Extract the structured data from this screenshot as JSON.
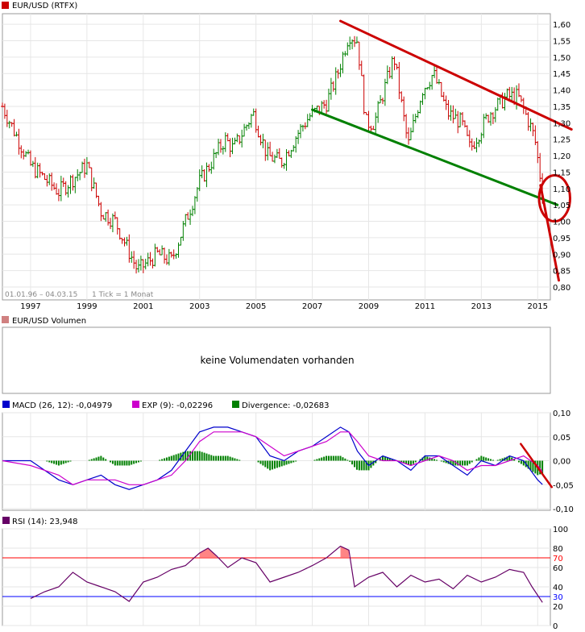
{
  "price_panel": {
    "legend": "EUR/USD (RTFX)",
    "legend_color": "#cc0000",
    "range_note": "01.01.96 – 04.03.15",
    "tick_note": "1 Tick = 1 Monat"
  },
  "volume_panel": {
    "legend": "EUR/USD Volumen",
    "legend_color": "#d08080",
    "message": "keine Volumendaten vorhanden"
  },
  "macd_panel": {
    "macd_legend": "MACD (26, 12): -0,04979",
    "exp_legend": "EXP (9): -0,02296",
    "div_legend": "Divergence: -0,02683",
    "macd_color": "#0000cc",
    "exp_color": "#cc00cc",
    "div_color": "#008000"
  },
  "rsi_panel": {
    "legend": "RSI (14): 23,948",
    "legend_color": "#660066"
  },
  "chart_data": [
    {
      "type": "ohlc-bar",
      "title": "EUR/USD (RTFX)",
      "x_tick_labels": [
        "1997",
        "1999",
        "2001",
        "2003",
        "2005",
        "2007",
        "2009",
        "2011",
        "2013",
        "2015"
      ],
      "y_tick_labels": [
        "1,60",
        "1,55",
        "1,50",
        "1,45",
        "1,40",
        "1,35",
        "1,30",
        "1,25",
        "1,20",
        "1,15",
        "1,10",
        "1,05",
        "1,00",
        "0,95",
        "0,90",
        "0,85",
        "0,80"
      ],
      "ylim": [
        0.8,
        1.62
      ],
      "up_color": "#008000",
      "down_color": "#cc0000",
      "series": [
        {
          "name": "EUR/USD",
          "x": [
            1996.0,
            1997.0,
            1998.0,
            1999.0,
            1999.5,
            2000.0,
            2000.8,
            2001.5,
            2002.0,
            2002.5,
            2003.0,
            2003.9,
            2004.2,
            2004.9,
            2005.4,
            2005.9,
            2006.5,
            2006.9,
            2007.5,
            2007.9,
            2008.3,
            2008.6,
            2008.9,
            2009.2,
            2009.9,
            2010.4,
            2010.9,
            2011.3,
            2011.8,
            2012.3,
            2012.6,
            2013.3,
            2013.9,
            2014.3,
            2014.7,
            2014.9,
            2015.17
          ],
          "y": [
            1.35,
            1.17,
            1.09,
            1.17,
            1.03,
            1.0,
            0.85,
            0.9,
            0.88,
            1.0,
            1.12,
            1.25,
            1.22,
            1.33,
            1.2,
            1.18,
            1.27,
            1.32,
            1.36,
            1.45,
            1.57,
            1.55,
            1.3,
            1.3,
            1.5,
            1.23,
            1.4,
            1.45,
            1.33,
            1.3,
            1.22,
            1.33,
            1.38,
            1.38,
            1.3,
            1.25,
            1.09
          ]
        }
      ],
      "annotations": [
        {
          "kind": "trendline",
          "name": "upper-trendline",
          "color": "#cc0000",
          "from": [
            2008.0,
            1.61
          ],
          "to": [
            2016.2,
            1.28
          ]
        },
        {
          "kind": "trendline",
          "name": "lower-trendline",
          "color": "#008000",
          "from": [
            2007.0,
            1.34
          ],
          "to": [
            2015.7,
            1.05
          ]
        },
        {
          "kind": "trendline",
          "name": "projection-line",
          "color": "#cc0000",
          "from": [
            2015.1,
            1.11
          ],
          "to": [
            2015.75,
            0.82
          ]
        },
        {
          "kind": "circle",
          "name": "highlight-circle",
          "color": "#cc0000",
          "center": [
            2015.6,
            1.07
          ],
          "rx_years": 0.55,
          "ry_value": 0.07
        }
      ]
    },
    {
      "type": "line",
      "title": "MACD (26, 12)",
      "ylim": [
        -0.1,
        0.1
      ],
      "y_tick_labels": [
        "0,10",
        "0,05",
        "0,00",
        "-0,05",
        "-0,10"
      ],
      "x": [
        1996.0,
        1997.0,
        1997.5,
        1998.0,
        1998.5,
        1999.0,
        1999.5,
        2000.0,
        2000.5,
        2001.0,
        2001.5,
        2002.0,
        2002.5,
        2003.0,
        2003.5,
        2004.0,
        2004.5,
        2005.0,
        2005.5,
        2006.0,
        2006.5,
        2007.0,
        2007.5,
        2008.0,
        2008.3,
        2008.6,
        2009.0,
        2009.5,
        2010.0,
        2010.5,
        2011.0,
        2011.5,
        2012.0,
        2012.5,
        2013.0,
        2013.5,
        2014.0,
        2014.5,
        2015.0,
        2015.17
      ],
      "series": [
        {
          "name": "MACD",
          "values": [
            0.0,
            0.0,
            -0.02,
            -0.04,
            -0.05,
            -0.04,
            -0.03,
            -0.05,
            -0.06,
            -0.05,
            -0.04,
            -0.02,
            0.02,
            0.06,
            0.07,
            0.07,
            0.06,
            0.05,
            0.01,
            0.0,
            0.02,
            0.03,
            0.05,
            0.07,
            0.06,
            0.02,
            -0.01,
            0.01,
            0.0,
            -0.02,
            0.01,
            0.01,
            -0.01,
            -0.03,
            0.0,
            -0.01,
            0.01,
            0.0,
            -0.04,
            -0.04979
          ]
        },
        {
          "name": "EXP",
          "values": [
            0.0,
            -0.01,
            -0.02,
            -0.03,
            -0.05,
            -0.04,
            -0.04,
            -0.04,
            -0.05,
            -0.05,
            -0.04,
            -0.03,
            0.0,
            0.04,
            0.06,
            0.06,
            0.06,
            0.05,
            0.03,
            0.01,
            0.02,
            0.03,
            0.04,
            0.06,
            0.06,
            0.04,
            0.01,
            0.0,
            0.0,
            -0.01,
            0.0,
            0.01,
            0.0,
            -0.02,
            -0.01,
            -0.01,
            0.0,
            0.01,
            -0.01,
            -0.02296
          ]
        },
        {
          "name": "Divergence",
          "values": [
            0.0,
            0.0,
            0.0,
            -0.01,
            0.0,
            0.0,
            0.01,
            -0.01,
            -0.01,
            0.0,
            0.0,
            0.01,
            0.02,
            0.02,
            0.01,
            0.01,
            0.0,
            0.0,
            -0.02,
            -0.01,
            0.0,
            0.0,
            0.01,
            0.01,
            0.0,
            -0.02,
            -0.02,
            0.01,
            0.0,
            -0.01,
            0.01,
            0.0,
            -0.01,
            -0.01,
            0.01,
            0.0,
            0.01,
            -0.01,
            -0.03,
            -0.02683
          ]
        }
      ],
      "annotations": [
        {
          "kind": "trendline",
          "name": "macd-trendline",
          "color": "#cc0000",
          "from": [
            2014.4,
            0.035
          ],
          "to": [
            2015.5,
            -0.055
          ]
        }
      ]
    },
    {
      "type": "line",
      "title": "RSI (14)",
      "ylim": [
        0,
        100
      ],
      "y_tick_labels": [
        "100",
        "80",
        "70",
        "60",
        "40",
        "30",
        "20",
        "0"
      ],
      "reference_lines": [
        {
          "value": 70,
          "color": "#ff0000"
        },
        {
          "value": 30,
          "color": "#0000ff"
        }
      ],
      "x": [
        1996.0,
        1997.0,
        1997.5,
        1998.0,
        1998.5,
        1999.0,
        1999.5,
        2000.0,
        2000.5,
        2001.0,
        2001.5,
        2002.0,
        2002.5,
        2003.0,
        2003.3,
        2003.6,
        2004.0,
        2004.5,
        2005.0,
        2005.5,
        2006.0,
        2006.5,
        2007.0,
        2007.5,
        2008.0,
        2008.3,
        2008.5,
        2009.0,
        2009.5,
        2010.0,
        2010.5,
        2011.0,
        2011.5,
        2012.0,
        2012.5,
        2013.0,
        2013.5,
        2014.0,
        2014.5,
        2014.8,
        2015.17
      ],
      "series": [
        {
          "name": "RSI",
          "values": [
            null,
            28,
            35,
            40,
            55,
            45,
            40,
            35,
            25,
            45,
            50,
            58,
            62,
            75,
            80,
            72,
            60,
            70,
            65,
            45,
            50,
            55,
            62,
            70,
            82,
            78,
            40,
            50,
            55,
            40,
            52,
            45,
            48,
            38,
            52,
            45,
            50,
            58,
            55,
            40,
            23.948
          ]
        }
      ]
    }
  ]
}
